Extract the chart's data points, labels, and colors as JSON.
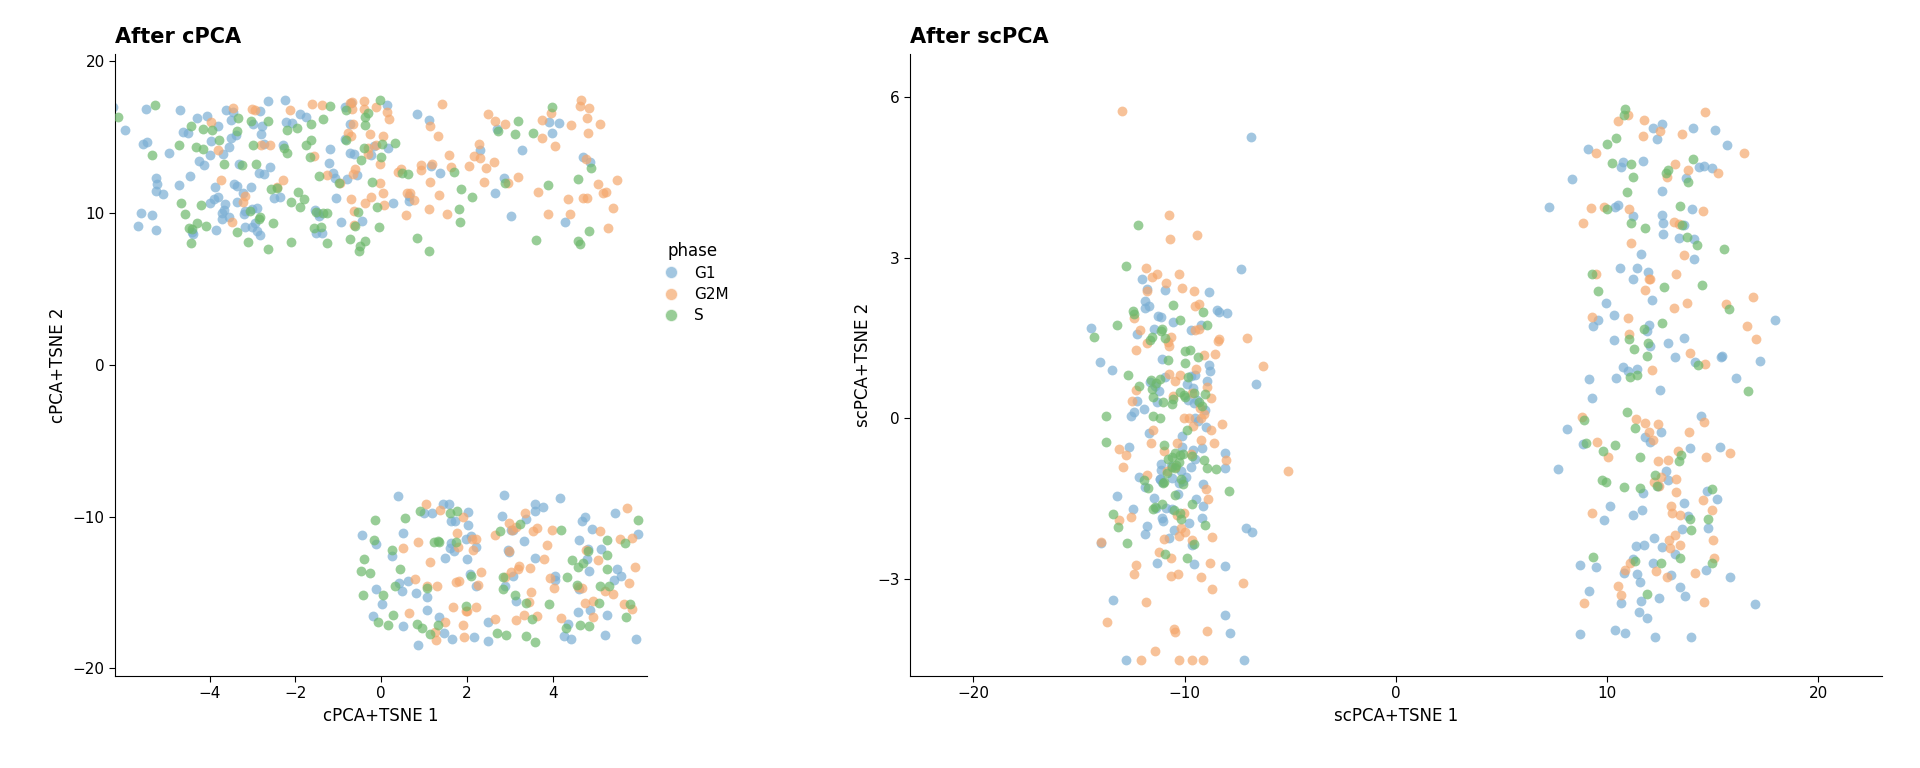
{
  "title1": "After cPCA",
  "title2": "After scPCA",
  "xlabel1": "cPCA+TSNE 1",
  "ylabel1": "cPCA+TSNE 2",
  "xlabel2": "scPCA+TSNE 1",
  "ylabel2": "scPCA+TSNE 2",
  "legend_title": "phase",
  "phases": [
    "G1",
    "G2M",
    "S"
  ],
  "colors": {
    "G1": "#7BAFD4",
    "G2M": "#F5A86E",
    "S": "#6DB86B"
  },
  "alpha": 0.7,
  "point_size": 50,
  "xlim1": [
    -6.2,
    6.2
  ],
  "ylim1": [
    -20.5,
    20.5
  ],
  "xlim2": [
    -23,
    23
  ],
  "ylim2": [
    -4.8,
    6.8
  ],
  "xticks1": [
    -4,
    -2,
    0,
    2,
    4
  ],
  "yticks1": [
    -20,
    -10,
    0,
    10,
    20
  ],
  "xticks2": [
    -20,
    -10,
    0,
    10,
    20
  ],
  "yticks2": [
    -3,
    0,
    3,
    6
  ]
}
